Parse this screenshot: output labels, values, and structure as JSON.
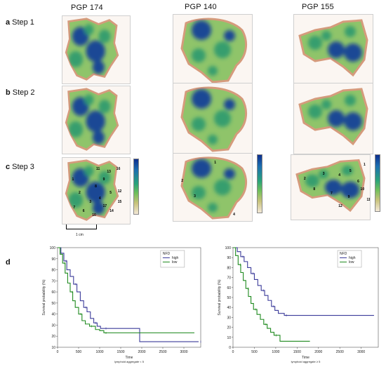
{
  "panel_labels": {
    "a": {
      "letter": "a",
      "text": "Step 1"
    },
    "b": {
      "letter": "b",
      "text": "Step 2"
    },
    "c": {
      "letter": "c",
      "text": "Step 3"
    },
    "d": {
      "letter": "d"
    }
  },
  "patients": [
    "PGP 174",
    "PGP 140",
    "PGP 155"
  ],
  "scale_bar_label": "1 cm",
  "colors": {
    "high_density": "#123a9a",
    "mid_density": "#2f9a6e",
    "low_density": "#8fc46a",
    "tissue_edge": "#d59b7c",
    "km_high": "#3b3b9a",
    "km_low": "#1f8a1f"
  },
  "region_numbers": {
    "pgp174": [
      "1",
      "2",
      "3",
      "4",
      "5",
      "6",
      "7",
      "8",
      "9",
      "10",
      "11",
      "12",
      "13",
      "14",
      "15",
      "16",
      "17"
    ],
    "pgp140": [
      "1",
      "2",
      "3",
      "4"
    ],
    "pgp155": [
      "1",
      "2",
      "3",
      "4",
      "5",
      "6",
      "7",
      "8",
      "9",
      "10",
      "11",
      "12"
    ]
  },
  "chart_data": [
    {
      "type": "line",
      "title": "",
      "xlabel": "Time",
      "xlabel_sub": "lymphoid aggregate < 5",
      "ylabel": "Survival probability (%)",
      "xlim": [
        0,
        3400
      ],
      "ylim": [
        10,
        100
      ],
      "xticks": [
        0,
        500,
        1000,
        1500,
        2000,
        2500,
        3000
      ],
      "yticks": [
        10,
        20,
        30,
        40,
        50,
        60,
        70,
        80,
        90,
        100
      ],
      "legend_title": "NFD",
      "legend_position": "top-right",
      "step": true,
      "series": [
        {
          "name": "high",
          "color": "#3b3b9a",
          "x": [
            0,
            80,
            150,
            220,
            300,
            380,
            460,
            540,
            620,
            700,
            780,
            860,
            940,
            1020,
            1100,
            1400,
            1950,
            3350
          ],
          "y": [
            100,
            95,
            88,
            80,
            74,
            67,
            60,
            52,
            46,
            42,
            36,
            32,
            29,
            27,
            27,
            27,
            15,
            15
          ]
        },
        {
          "name": "low",
          "color": "#1f8a1f",
          "x": [
            0,
            60,
            120,
            180,
            240,
            300,
            360,
            420,
            500,
            580,
            660,
            760,
            900,
            1000,
            1100,
            1700,
            3250
          ],
          "y": [
            100,
            94,
            86,
            77,
            68,
            60,
            52,
            46,
            40,
            34,
            31,
            29,
            26,
            25,
            23,
            23,
            23
          ]
        }
      ]
    },
    {
      "type": "line",
      "title": "",
      "xlabel": "Time",
      "xlabel_sub": "lymphoid aggregate ≥ 5",
      "ylabel": "Survival probability (%)",
      "xlim": [
        0,
        3400
      ],
      "ylim": [
        0,
        100
      ],
      "xticks": [
        0,
        500,
        1000,
        1500,
        2000,
        2500,
        3000
      ],
      "yticks": [
        0,
        10,
        20,
        30,
        40,
        50,
        60,
        70,
        80,
        90,
        100
      ],
      "legend_title": "NFD",
      "legend_position": "top-right",
      "step": true,
      "series": [
        {
          "name": "high",
          "color": "#3b3b9a",
          "x": [
            0,
            100,
            180,
            260,
            340,
            420,
            500,
            580,
            660,
            740,
            820,
            900,
            980,
            1060,
            1200,
            3300
          ],
          "y": [
            100,
            96,
            91,
            86,
            80,
            74,
            68,
            62,
            57,
            52,
            47,
            41,
            37,
            34,
            32,
            32
          ]
        },
        {
          "name": "low",
          "color": "#1f8a1f",
          "x": [
            0,
            60,
            120,
            180,
            240,
            300,
            360,
            420,
            480,
            560,
            640,
            720,
            800,
            880,
            960,
            1100,
            1800
          ],
          "y": [
            100,
            92,
            83,
            75,
            67,
            59,
            51,
            44,
            38,
            33,
            28,
            23,
            19,
            15,
            12,
            6,
            6
          ]
        }
      ]
    }
  ]
}
